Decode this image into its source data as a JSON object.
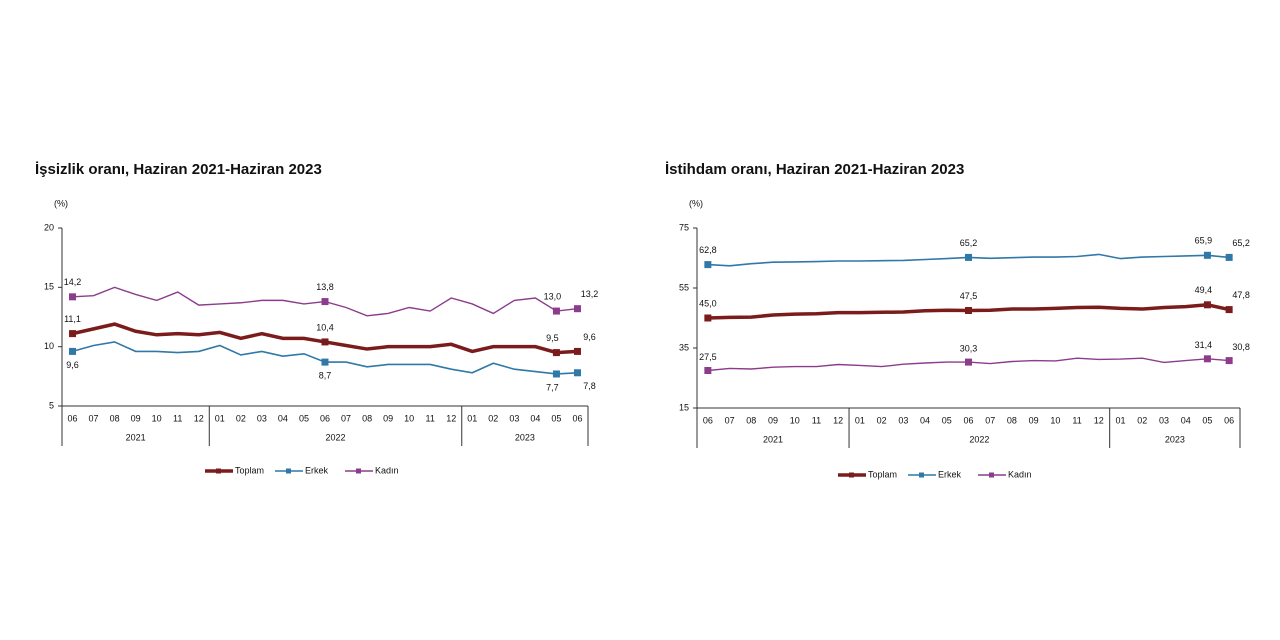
{
  "chart_data": [
    {
      "type": "line",
      "title": "İşsizlik oranı, Haziran 2021-Haziran 2023",
      "y_label": "(%)",
      "categories": [
        "06",
        "07",
        "08",
        "09",
        "10",
        "11",
        "12",
        "01",
        "02",
        "03",
        "04",
        "05",
        "06",
        "07",
        "08",
        "09",
        "10",
        "11",
        "12",
        "01",
        "02",
        "03",
        "04",
        "05",
        "06"
      ],
      "x_groups": [
        "2021",
        "2022",
        "2023"
      ],
      "ylim": [
        5,
        20
      ],
      "yticks": [
        5,
        10,
        15,
        20
      ],
      "series": [
        {
          "name": "Toplam",
          "color": "#7b1c1c",
          "values": [
            11.1,
            11.5,
            11.9,
            11.3,
            11.0,
            11.1,
            11.0,
            11.2,
            10.7,
            11.1,
            10.7,
            10.7,
            10.4,
            10.1,
            9.8,
            10.0,
            10.0,
            10.0,
            10.2,
            9.6,
            10.0,
            10.0,
            10.0,
            9.5,
            9.6
          ],
          "value_labels": [
            "11,1",
            null,
            null,
            null,
            null,
            null,
            null,
            null,
            null,
            null,
            null,
            null,
            "10,4",
            null,
            null,
            null,
            null,
            null,
            null,
            null,
            null,
            null,
            null,
            "9,5",
            "9,6"
          ]
        },
        {
          "name": "Erkek",
          "color": "#2f78a8",
          "values": [
            9.6,
            10.1,
            10.4,
            9.6,
            9.6,
            9.5,
            9.6,
            10.1,
            9.3,
            9.6,
            9.2,
            9.4,
            8.7,
            8.7,
            8.3,
            8.5,
            8.5,
            8.5,
            8.1,
            7.8,
            8.6,
            8.1,
            7.9,
            7.7,
            7.8
          ],
          "value_labels": [
            "9,6",
            null,
            null,
            null,
            null,
            null,
            null,
            null,
            null,
            null,
            null,
            null,
            "8,7",
            null,
            null,
            null,
            null,
            null,
            null,
            null,
            null,
            null,
            null,
            "7,7",
            "7,8"
          ]
        },
        {
          "name": "Kadın",
          "color": "#8b3d8b",
          "values": [
            14.2,
            14.3,
            15.0,
            14.4,
            13.9,
            14.6,
            13.5,
            13.6,
            13.7,
            13.9,
            13.9,
            13.6,
            13.8,
            13.3,
            12.6,
            12.8,
            13.3,
            13.0,
            14.1,
            13.6,
            12.8,
            13.9,
            14.1,
            13.0,
            13.2
          ],
          "value_labels": [
            "14,2",
            null,
            null,
            null,
            null,
            null,
            null,
            null,
            null,
            null,
            null,
            null,
            "13,8",
            null,
            null,
            null,
            null,
            null,
            null,
            null,
            null,
            null,
            null,
            "13,0",
            "13,2"
          ]
        }
      ]
    },
    {
      "type": "line",
      "title": "İstihdam oranı, Haziran 2021-Haziran 2023",
      "y_label": "(%)",
      "categories": [
        "06",
        "07",
        "08",
        "09",
        "10",
        "11",
        "12",
        "01",
        "02",
        "03",
        "04",
        "05",
        "06",
        "07",
        "08",
        "09",
        "10",
        "11",
        "12",
        "01",
        "02",
        "03",
        "04",
        "05",
        "06"
      ],
      "x_groups": [
        "2021",
        "2022",
        "2023"
      ],
      "ylim": [
        15,
        75
      ],
      "yticks": [
        15,
        35,
        55,
        75
      ],
      "series": [
        {
          "name": "Toplam",
          "color": "#7b1c1c",
          "values": [
            45.0,
            45.2,
            45.3,
            46.0,
            46.3,
            46.4,
            46.8,
            46.8,
            46.9,
            47.0,
            47.4,
            47.6,
            47.5,
            47.6,
            48.0,
            48.0,
            48.2,
            48.5,
            48.6,
            48.2,
            48.0,
            48.5,
            48.8,
            49.4,
            47.8
          ],
          "value_labels": [
            "45,0",
            null,
            null,
            null,
            null,
            null,
            null,
            null,
            null,
            null,
            null,
            null,
            "47,5",
            null,
            null,
            null,
            null,
            null,
            null,
            null,
            null,
            null,
            null,
            "49,4",
            "47,8"
          ]
        },
        {
          "name": "Erkek",
          "color": "#2f78a8",
          "values": [
            62.8,
            62.4,
            63.1,
            63.6,
            63.7,
            63.8,
            64.0,
            64.0,
            64.1,
            64.2,
            64.5,
            64.8,
            65.2,
            64.9,
            65.1,
            65.3,
            65.3,
            65.5,
            66.2,
            64.8,
            65.3,
            65.5,
            65.7,
            65.9,
            65.2
          ],
          "value_labels": [
            "62,8",
            null,
            null,
            null,
            null,
            null,
            null,
            null,
            null,
            null,
            null,
            null,
            "65,2",
            null,
            null,
            null,
            null,
            null,
            null,
            null,
            null,
            null,
            null,
            "65,9",
            "65,2"
          ]
        },
        {
          "name": "Kadın",
          "color": "#8b3d8b",
          "values": [
            27.5,
            28.2,
            28.0,
            28.6,
            28.8,
            28.8,
            29.5,
            29.2,
            28.8,
            29.6,
            30.0,
            30.3,
            30.3,
            29.8,
            30.5,
            30.8,
            30.7,
            31.6,
            31.2,
            31.3,
            31.6,
            30.2,
            30.8,
            31.4,
            30.8
          ],
          "value_labels": [
            "27,5",
            null,
            null,
            null,
            null,
            null,
            null,
            null,
            null,
            null,
            null,
            null,
            "30,3",
            null,
            null,
            null,
            null,
            null,
            null,
            null,
            null,
            null,
            null,
            "31,4",
            "30,8"
          ]
        }
      ]
    }
  ]
}
